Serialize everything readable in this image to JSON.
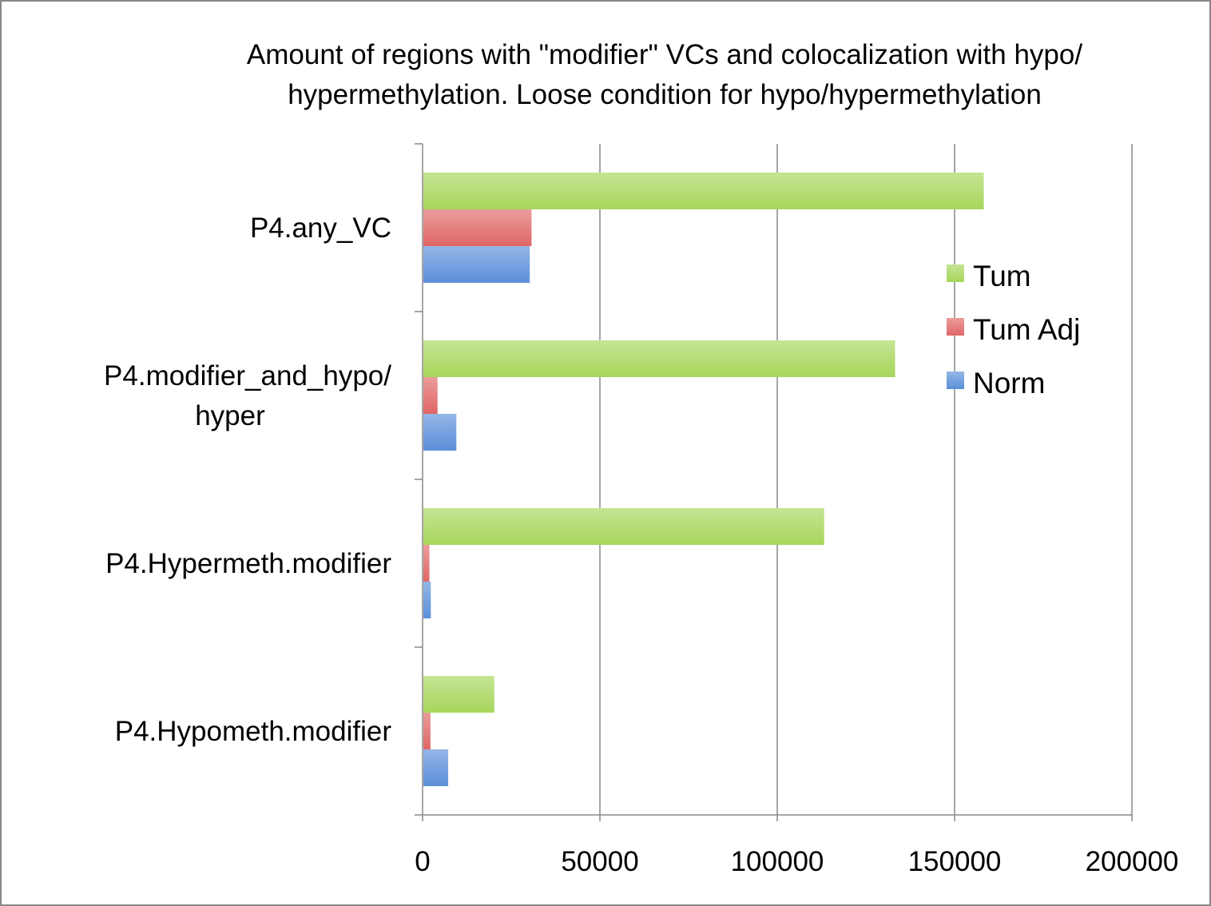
{
  "chart_data": {
    "type": "bar",
    "orientation": "horizontal",
    "title": "Amount of regions with \"modifier\" VCs and colocalization with hypo/ hypermethylation. Loose condition for hypo/hypermethylation",
    "title_lines": [
      "Amount of regions with \"modifier\" VCs and colocalization with hypo/",
      "hypermethylation. Loose condition for hypo/hypermethylation"
    ],
    "categories": [
      "P4.any_VC",
      "P4.modifier_and_hypo/ hyper",
      "P4.Hypermeth.modifier",
      "P4.Hypometh.modifier"
    ],
    "category_lines": [
      [
        "P4.any_VC"
      ],
      [
        "P4.modifier_and_hypo/",
        "hyper"
      ],
      [
        "P4.Hypermeth.modifier"
      ],
      [
        "P4.Hypometh.modifier"
      ]
    ],
    "series": [
      {
        "name": "Tum",
        "color": "#a6d65a",
        "values": [
          158000,
          133000,
          113000,
          20000
        ]
      },
      {
        "name": "Tum Adj",
        "color": "#e06666",
        "values": [
          30500,
          4000,
          1700,
          2000
        ]
      },
      {
        "name": "Norm",
        "color": "#5b8fd9",
        "values": [
          30000,
          9300,
          2100,
          7000
        ]
      }
    ],
    "xlim": [
      0,
      200000
    ],
    "xticks": [
      0,
      50000,
      100000,
      150000,
      200000
    ],
    "xtick_labels": [
      "0",
      "50000",
      "100000",
      "150000",
      "200000"
    ],
    "xlabel": "",
    "ylabel": "",
    "grid": "vertical",
    "legend_position": "right"
  }
}
